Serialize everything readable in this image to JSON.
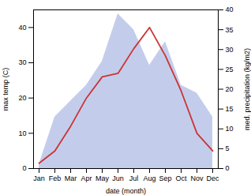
{
  "chart_data": {
    "type": "line",
    "xlabel": "date (month)",
    "ylabel": "max temp (C)",
    "y2label": "med. precipitation (kg/m2)",
    "categories": [
      "Jan",
      "Feb",
      "Mar",
      "Apr",
      "May",
      "Jun",
      "Jul",
      "Aug",
      "Sep",
      "Oct",
      "Nov",
      "Dec"
    ],
    "series": [
      {
        "type": "area",
        "axis": "y2",
        "color": "#b8c4e8",
        "values": [
          1.0,
          13.0,
          17.0,
          21.0,
          27.0,
          39.0,
          35.0,
          26.0,
          32.0,
          21.0,
          19.0,
          13.0
        ]
      },
      {
        "type": "line",
        "color": "#cc3333",
        "values": [
          1.5,
          5.0,
          12.0,
          20.0,
          26.0,
          27.0,
          34.0,
          40.0,
          32.0,
          22.0,
          10.0,
          5.0
        ]
      }
    ],
    "ylim": [
      0,
      45
    ],
    "yticks": [
      0,
      10,
      20,
      30,
      40
    ],
    "y2lim": [
      0,
      40
    ],
    "y2ticks": [
      0,
      5,
      10,
      15,
      20,
      25,
      30,
      35,
      40
    ]
  }
}
